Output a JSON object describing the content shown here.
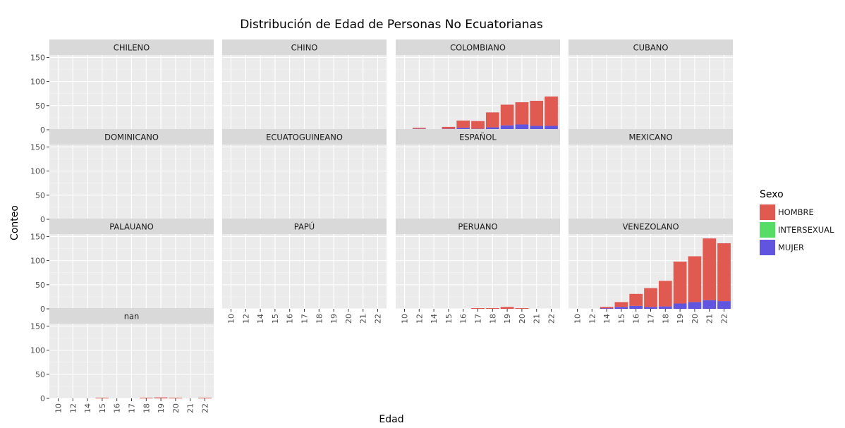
{
  "chart_data": {
    "type": "bar",
    "stacked": true,
    "faceted": true,
    "title": "Distribución de Edad de Personas No Ecuatorianas",
    "xlabel": "Edad",
    "ylabel": "Conteo",
    "ylim": [
      0,
      155
    ],
    "y_ticks": [
      0,
      50,
      100,
      150
    ],
    "categories": [
      "10",
      "12",
      "14",
      "15",
      "16",
      "17",
      "18",
      "19",
      "20",
      "21",
      "22"
    ],
    "legend": {
      "title": "Sexo",
      "position": "right",
      "entries": [
        {
          "name": "HOMBRE",
          "color": "#e05a52"
        },
        {
          "name": "INTERSEXUAL",
          "color": "#55dd66"
        },
        {
          "name": "MUJER",
          "color": "#6155e0"
        }
      ]
    },
    "facets": [
      {
        "label": "CHILENO",
        "series": [
          {
            "name": "HOMBRE",
            "values": [
              0,
              0,
              0,
              0,
              0,
              1,
              0,
              0,
              0,
              0,
              0
            ]
          },
          {
            "name": "INTERSEXUAL",
            "values": [
              0,
              0,
              0,
              0,
              0,
              0,
              0,
              0,
              0,
              0,
              0
            ]
          },
          {
            "name": "MUJER",
            "values": [
              0,
              0,
              0,
              0,
              0,
              0,
              0,
              0,
              0,
              0,
              0
            ]
          }
        ]
      },
      {
        "label": "CHINO",
        "series": [
          {
            "name": "HOMBRE",
            "values": [
              0,
              0,
              0,
              0,
              0,
              0,
              1,
              0,
              0,
              0,
              0
            ]
          },
          {
            "name": "INTERSEXUAL",
            "values": [
              0,
              0,
              0,
              0,
              0,
              0,
              0,
              0,
              0,
              0,
              0
            ]
          },
          {
            "name": "MUJER",
            "values": [
              0,
              0,
              0,
              0,
              0,
              0,
              0,
              0,
              1,
              0,
              0
            ]
          }
        ]
      },
      {
        "label": "COLOMBIANO",
        "series": [
          {
            "name": "HOMBRE",
            "values": [
              1,
              2,
              1,
              4,
              15,
              16,
              31,
              43,
              46,
              52,
              61
            ]
          },
          {
            "name": "INTERSEXUAL",
            "values": [
              0,
              0,
              0,
              0,
              0,
              0,
              0,
              0,
              0,
              0,
              0
            ]
          },
          {
            "name": "MUJER",
            "values": [
              0,
              2,
              0,
              2,
              4,
              2,
              5,
              9,
              11,
              8,
              8
            ]
          }
        ]
      },
      {
        "label": "CUBANO",
        "series": [
          {
            "name": "HOMBRE",
            "values": [
              0,
              0,
              0,
              0,
              0,
              0,
              1,
              0,
              0,
              0,
              1
            ]
          },
          {
            "name": "INTERSEXUAL",
            "values": [
              0,
              0,
              0,
              0,
              0,
              0,
              0,
              0,
              0,
              0,
              0
            ]
          },
          {
            "name": "MUJER",
            "values": [
              0,
              0,
              0,
              0,
              0,
              0,
              0,
              0,
              0,
              0,
              0
            ]
          }
        ]
      },
      {
        "label": "DOMINICANO",
        "series": [
          {
            "name": "HOMBRE",
            "values": [
              0,
              0,
              0,
              0,
              0,
              0,
              1,
              0,
              1,
              0,
              0
            ]
          },
          {
            "name": "INTERSEXUAL",
            "values": [
              0,
              0,
              0,
              0,
              0,
              0,
              0,
              0,
              0,
              0,
              0
            ]
          },
          {
            "name": "MUJER",
            "values": [
              0,
              0,
              0,
              0,
              0,
              0,
              0,
              0,
              0,
              0,
              0
            ]
          }
        ]
      },
      {
        "label": "ECUATOGUINEANO",
        "series": [
          {
            "name": "HOMBRE",
            "values": [
              0,
              0,
              0,
              0,
              0,
              0,
              0,
              0,
              0,
              0,
              0
            ]
          },
          {
            "name": "INTERSEXUAL",
            "values": [
              0,
              0,
              0,
              0,
              0,
              0,
              0,
              0,
              0,
              0,
              0
            ]
          },
          {
            "name": "MUJER",
            "values": [
              0,
              0,
              0,
              0,
              0,
              0,
              0,
              0,
              0,
              0,
              0
            ]
          }
        ]
      },
      {
        "label": "ESPAÑOL",
        "series": [
          {
            "name": "HOMBRE",
            "values": [
              0,
              0,
              0,
              0,
              0,
              0,
              0,
              0,
              0,
              0,
              0
            ]
          },
          {
            "name": "INTERSEXUAL",
            "values": [
              0,
              0,
              0,
              0,
              0,
              0,
              0,
              0,
              0,
              0,
              0
            ]
          },
          {
            "name": "MUJER",
            "values": [
              0,
              0,
              0,
              0,
              0,
              0,
              0,
              0,
              0,
              0,
              0
            ]
          }
        ]
      },
      {
        "label": "MEXICANO",
        "series": [
          {
            "name": "HOMBRE",
            "values": [
              0,
              0,
              0,
              0,
              0,
              0,
              0,
              0,
              0,
              0,
              0
            ]
          },
          {
            "name": "INTERSEXUAL",
            "values": [
              0,
              0,
              0,
              0,
              0,
              0,
              0,
              0,
              0,
              0,
              0
            ]
          },
          {
            "name": "MUJER",
            "values": [
              0,
              0,
              0,
              0,
              0,
              0,
              0,
              0,
              0,
              0,
              0
            ]
          }
        ]
      },
      {
        "label": "PALAUANO",
        "series": [
          {
            "name": "HOMBRE",
            "values": [
              0,
              0,
              0,
              0,
              0,
              0,
              0,
              0,
              0,
              0,
              0
            ]
          },
          {
            "name": "INTERSEXUAL",
            "values": [
              0,
              0,
              0,
              0,
              0,
              0,
              0,
              0,
              0,
              0,
              0
            ]
          },
          {
            "name": "MUJER",
            "values": [
              0,
              0,
              0,
              0,
              0,
              0,
              0,
              0,
              0,
              0,
              0
            ]
          }
        ]
      },
      {
        "label": "PAPÚ",
        "series": [
          {
            "name": "HOMBRE",
            "values": [
              0,
              0,
              0,
              0,
              0,
              0,
              0,
              0,
              0,
              0,
              0
            ]
          },
          {
            "name": "INTERSEXUAL",
            "values": [
              0,
              0,
              0,
              0,
              0,
              0,
              0,
              0,
              0,
              0,
              0
            ]
          },
          {
            "name": "MUJER",
            "values": [
              0,
              0,
              0,
              0,
              0,
              0,
              0,
              0,
              0,
              0,
              0
            ]
          }
        ]
      },
      {
        "label": "PERUANO",
        "series": [
          {
            "name": "HOMBRE",
            "values": [
              0,
              0,
              0,
              0,
              0,
              1,
              1,
              4,
              1,
              0,
              0
            ]
          },
          {
            "name": "INTERSEXUAL",
            "values": [
              0,
              0,
              0,
              0,
              0,
              0,
              0,
              0,
              0,
              0,
              0
            ]
          },
          {
            "name": "MUJER",
            "values": [
              0,
              0,
              0,
              0,
              0,
              0,
              0,
              0,
              0,
              0,
              0
            ]
          }
        ]
      },
      {
        "label": "VENEZOLANO",
        "series": [
          {
            "name": "HOMBRE",
            "values": [
              0,
              0,
              3,
              10,
              25,
              39,
              53,
              87,
              95,
              128,
              120
            ]
          },
          {
            "name": "INTERSEXUAL",
            "values": [
              0,
              0,
              0,
              0,
              0,
              0,
              0,
              0,
              0,
              0,
              0
            ]
          },
          {
            "name": "MUJER",
            "values": [
              0,
              0,
              1,
              4,
              6,
              4,
              5,
              11,
              14,
              18,
              16
            ]
          }
        ]
      },
      {
        "label": "nan",
        "series": [
          {
            "name": "HOMBRE",
            "values": [
              0,
              0,
              0,
              1,
              0,
              0,
              1,
              2,
              1,
              0,
              1
            ]
          },
          {
            "name": "INTERSEXUAL",
            "values": [
              0,
              0,
              0,
              0,
              0,
              0,
              0,
              0,
              0,
              0,
              0
            ]
          },
          {
            "name": "MUJER",
            "values": [
              0,
              0,
              0,
              0,
              0,
              0,
              0,
              0,
              0,
              0,
              0
            ]
          }
        ]
      }
    ]
  }
}
